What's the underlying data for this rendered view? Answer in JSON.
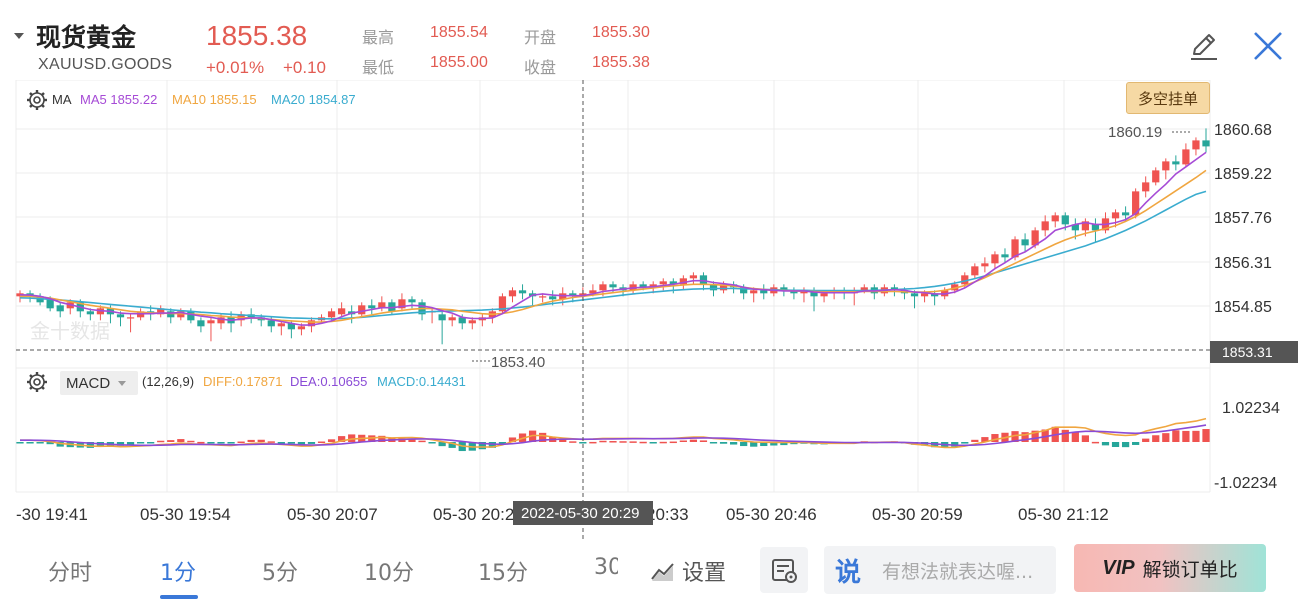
{
  "header": {
    "title": "现货黄金",
    "symbol": "XAUUSD.GOODS",
    "price": "1855.38",
    "change_pct": "+0.01%",
    "change_abs": "+0.10",
    "stats": {
      "high_label": "最高",
      "high_value": "1855.54",
      "low_label": "最低",
      "low_value": "1855.00",
      "open_label": "开盘",
      "open_value": "1855.30",
      "close_label": "收盘",
      "close_value": "1855.38"
    }
  },
  "main_chart": {
    "indicator": "MA",
    "ma5": "MA5 1855.22",
    "ma10": "MA10 1855.15",
    "ma20": "MA20 1854.87",
    "y_ticks": [
      "1860.68",
      "1859.22",
      "1857.76",
      "1856.31",
      "1854.85"
    ],
    "max_label": "1860.19",
    "min_label": "1853.40",
    "crosshair_price": "1853.31",
    "watermark": "金十数据",
    "button_label": "多空挂单"
  },
  "macd_chart": {
    "indicator": "MACD",
    "params": "(12,26,9)",
    "diff": "DIFF:0.17871",
    "dea": "DEA:0.10655",
    "macd": "MACD:0.14431",
    "y_top": "1.02234",
    "y_bottom": "-1.02234"
  },
  "x_axis": {
    "labels": [
      "-30 19:41",
      "05-30 19:54",
      "05-30 20:07",
      "05-30 20:2",
      "20:33",
      "05-30 20:46",
      "05-30 20:59",
      "05-30 21:12"
    ],
    "crosshair_time": "2022-05-30 20:29"
  },
  "colors": {
    "up": "#ef5350",
    "down": "#26a69a",
    "ma5": "#a64bd6",
    "ma10": "#f0a640",
    "ma20": "#3aaccf",
    "accent": "#3a78d8"
  },
  "bottom_bar": {
    "periods": [
      "分时",
      "1分",
      "5分",
      "10分",
      "15分",
      "30"
    ],
    "active_period": "1分",
    "settings_label": "设置",
    "comment_placeholder": "有想法就表达喔...",
    "vip_mark": "VIP",
    "vip_label": "解锁订单比"
  },
  "chart_data": {
    "type": "candlestick",
    "price_range": [
      1853.31,
      1860.68
    ],
    "candles": [
      [
        1855.1,
        1855.2,
        1855.3,
        1854.9
      ],
      [
        1855.2,
        1855.1,
        1855.3,
        1854.9
      ],
      [
        1855.1,
        1854.9,
        1855.2,
        1854.8
      ],
      [
        1855.0,
        1854.7,
        1855.1,
        1854.6
      ],
      [
        1854.8,
        1854.6,
        1854.9,
        1854.4
      ],
      [
        1854.7,
        1854.9,
        1855.0,
        1854.5
      ],
      [
        1854.9,
        1854.6,
        1855.0,
        1854.4
      ],
      [
        1854.6,
        1854.5,
        1854.7,
        1854.3
      ],
      [
        1854.5,
        1854.7,
        1854.8,
        1854.3
      ],
      [
        1854.7,
        1854.5,
        1854.8,
        1854.2
      ],
      [
        1854.5,
        1854.4,
        1854.6,
        1854.1
      ],
      [
        1854.4,
        1854.4,
        1854.5,
        1853.9
      ],
      [
        1854.4,
        1854.6,
        1854.7,
        1854.3
      ],
      [
        1854.6,
        1854.5,
        1854.8,
        1854.3
      ],
      [
        1854.5,
        1854.7,
        1854.8,
        1854.4
      ],
      [
        1854.6,
        1854.4,
        1854.7,
        1854.2
      ],
      [
        1854.4,
        1854.6,
        1854.7,
        1854.3
      ],
      [
        1854.6,
        1854.3,
        1854.7,
        1854.2
      ],
      [
        1854.3,
        1854.1,
        1854.4,
        1853.9
      ],
      [
        1854.2,
        1854.3,
        1854.4,
        1853.6
      ],
      [
        1854.2,
        1854.4,
        1854.5,
        1854.0
      ],
      [
        1854.4,
        1854.2,
        1854.6,
        1853.9
      ],
      [
        1854.3,
        1854.5,
        1854.6,
        1854.1
      ],
      [
        1854.5,
        1854.4,
        1854.7,
        1854.2
      ],
      [
        1854.4,
        1854.3,
        1854.5,
        1854.1
      ],
      [
        1854.3,
        1854.1,
        1854.4,
        1853.9
      ],
      [
        1854.1,
        1854.2,
        1854.3,
        1853.8
      ],
      [
        1854.2,
        1854.0,
        1854.3,
        1853.7
      ],
      [
        1854.0,
        1854.1,
        1854.2,
        1853.8
      ],
      [
        1854.1,
        1854.3,
        1854.4,
        1853.9
      ],
      [
        1854.3,
        1854.4,
        1854.5,
        1854.2
      ],
      [
        1854.4,
        1854.6,
        1854.7,
        1854.3
      ],
      [
        1854.5,
        1854.7,
        1854.9,
        1854.4
      ],
      [
        1854.6,
        1854.5,
        1854.8,
        1854.2
      ],
      [
        1854.5,
        1854.8,
        1854.9,
        1854.4
      ],
      [
        1854.8,
        1854.7,
        1855.0,
        1854.5
      ],
      [
        1854.7,
        1854.9,
        1855.1,
        1854.6
      ],
      [
        1854.9,
        1854.6,
        1855.0,
        1854.5
      ],
      [
        1854.7,
        1855.0,
        1855.2,
        1854.6
      ],
      [
        1855.0,
        1854.9,
        1855.1,
        1854.7
      ],
      [
        1854.9,
        1854.5,
        1855.0,
        1854.3
      ],
      [
        1854.6,
        1854.6,
        1854.7,
        1854.2
      ],
      [
        1854.5,
        1854.3,
        1854.6,
        1853.5
      ],
      [
        1854.3,
        1854.4,
        1854.5,
        1854.1
      ],
      [
        1854.4,
        1854.2,
        1854.5,
        1854.0
      ],
      [
        1854.2,
        1854.3,
        1854.4,
        1854.0
      ],
      [
        1854.3,
        1854.4,
        1854.5,
        1854.1
      ],
      [
        1854.4,
        1854.6,
        1854.7,
        1854.2
      ],
      [
        1854.6,
        1855.1,
        1855.2,
        1854.5
      ],
      [
        1855.1,
        1855.3,
        1855.4,
        1854.9
      ],
      [
        1855.3,
        1855.2,
        1855.5,
        1855.0
      ],
      [
        1855.2,
        1855.1,
        1855.3,
        1854.8
      ],
      [
        1855.1,
        1855.1,
        1855.2,
        1854.9
      ],
      [
        1855.1,
        1855.0,
        1855.3,
        1854.8
      ],
      [
        1855.0,
        1855.2,
        1855.4,
        1854.8
      ],
      [
        1855.2,
        1855.1,
        1855.3,
        1854.9
      ],
      [
        1855.1,
        1855.2,
        1855.4,
        1855.0
      ],
      [
        1855.2,
        1855.3,
        1855.5,
        1855.1
      ],
      [
        1855.3,
        1855.5,
        1855.6,
        1855.1
      ],
      [
        1855.5,
        1855.4,
        1855.6,
        1855.2
      ],
      [
        1855.4,
        1855.3,
        1855.5,
        1855.1
      ],
      [
        1855.3,
        1855.5,
        1855.6,
        1855.2
      ],
      [
        1855.5,
        1855.4,
        1855.6,
        1855.3
      ],
      [
        1855.4,
        1855.5,
        1855.6,
        1855.2
      ],
      [
        1855.5,
        1855.6,
        1855.7,
        1855.3
      ],
      [
        1855.6,
        1855.5,
        1855.7,
        1855.2
      ],
      [
        1855.5,
        1855.7,
        1855.8,
        1855.3
      ],
      [
        1855.7,
        1855.8,
        1855.9,
        1855.5
      ],
      [
        1855.8,
        1855.5,
        1855.9,
        1855.3
      ],
      [
        1855.5,
        1855.3,
        1855.6,
        1855.1
      ],
      [
        1855.3,
        1855.5,
        1855.6,
        1855.2
      ],
      [
        1855.5,
        1855.4,
        1855.6,
        1855.2
      ],
      [
        1855.4,
        1855.2,
        1855.5,
        1855.0
      ],
      [
        1855.2,
        1855.3,
        1855.4,
        1854.9
      ],
      [
        1855.3,
        1855.2,
        1855.5,
        1855.0
      ],
      [
        1855.2,
        1855.4,
        1855.5,
        1855.1
      ],
      [
        1855.4,
        1855.3,
        1855.5,
        1855.1
      ],
      [
        1855.3,
        1855.2,
        1855.4,
        1855.0
      ],
      [
        1855.2,
        1855.3,
        1855.4,
        1854.9
      ],
      [
        1855.3,
        1855.1,
        1855.4,
        1854.6
      ],
      [
        1855.1,
        1855.2,
        1855.3,
        1854.9
      ],
      [
        1855.2,
        1855.3,
        1855.4,
        1855.0
      ],
      [
        1855.3,
        1855.2,
        1855.4,
        1855.0
      ],
      [
        1855.2,
        1855.3,
        1855.4,
        1854.8
      ],
      [
        1855.3,
        1855.4,
        1855.5,
        1855.2
      ],
      [
        1855.4,
        1855.2,
        1855.5,
        1855.0
      ],
      [
        1855.2,
        1855.4,
        1855.5,
        1855.1
      ],
      [
        1855.4,
        1855.3,
        1855.5,
        1855.1
      ],
      [
        1855.3,
        1855.2,
        1855.4,
        1855.0
      ],
      [
        1855.2,
        1855.1,
        1855.3,
        1854.7
      ],
      [
        1855.1,
        1855.2,
        1855.3,
        1854.9
      ],
      [
        1855.2,
        1855.1,
        1855.3,
        1854.8
      ],
      [
        1855.1,
        1855.3,
        1855.4,
        1855.0
      ],
      [
        1855.3,
        1855.5,
        1855.6,
        1855.2
      ],
      [
        1855.5,
        1855.8,
        1855.9,
        1855.4
      ],
      [
        1855.8,
        1856.1,
        1856.2,
        1855.7
      ],
      [
        1856.1,
        1856.2,
        1856.4,
        1855.9
      ],
      [
        1856.2,
        1856.5,
        1856.6,
        1856.0
      ],
      [
        1856.5,
        1856.4,
        1856.7,
        1856.2
      ],
      [
        1856.4,
        1857.0,
        1857.1,
        1856.3
      ],
      [
        1857.0,
        1856.8,
        1857.2,
        1856.6
      ],
      [
        1856.8,
        1857.3,
        1857.4,
        1856.7
      ],
      [
        1857.3,
        1857.6,
        1857.8,
        1857.1
      ],
      [
        1857.6,
        1857.8,
        1857.9,
        1857.4
      ],
      [
        1857.8,
        1857.5,
        1857.9,
        1857.3
      ],
      [
        1857.5,
        1857.3,
        1857.7,
        1857.0
      ],
      [
        1857.3,
        1857.6,
        1857.7,
        1857.1
      ],
      [
        1857.5,
        1857.3,
        1857.7,
        1856.9
      ],
      [
        1857.3,
        1857.7,
        1857.9,
        1857.2
      ],
      [
        1857.7,
        1857.9,
        1858.0,
        1857.4
      ],
      [
        1857.9,
        1857.8,
        1858.1,
        1857.6
      ],
      [
        1857.8,
        1858.6,
        1858.7,
        1857.7
      ],
      [
        1858.6,
        1858.9,
        1859.1,
        1858.4
      ],
      [
        1858.9,
        1859.3,
        1859.4,
        1858.8
      ],
      [
        1859.3,
        1859.6,
        1859.7,
        1859.0
      ],
      [
        1859.6,
        1859.5,
        1859.8,
        1859.3
      ],
      [
        1859.5,
        1860.0,
        1860.2,
        1859.4
      ],
      [
        1860.0,
        1860.3,
        1860.4,
        1859.8
      ],
      [
        1860.3,
        1860.1,
        1860.7,
        1859.9
      ]
    ],
    "ma5": [
      1855.15,
      1855.14,
      1855.1,
      1855.02,
      1854.9,
      1854.82,
      1854.74,
      1854.66,
      1854.62,
      1854.6,
      1854.54,
      1854.52,
      1854.52,
      1854.52,
      1854.54,
      1854.54,
      1854.56,
      1854.5,
      1854.44,
      1854.4,
      1854.34,
      1854.3,
      1854.34,
      1854.38,
      1854.38,
      1854.32,
      1854.26,
      1854.2,
      1854.14,
      1854.14,
      1854.2,
      1854.28,
      1854.42,
      1854.54,
      1854.6,
      1854.66,
      1854.72,
      1854.72,
      1854.76,
      1854.8,
      1854.78,
      1854.72,
      1854.62,
      1854.54,
      1854.4,
      1854.36,
      1854.36,
      1854.38,
      1854.52,
      1854.74,
      1854.94,
      1855.14,
      1855.18,
      1855.14,
      1855.12,
      1855.12,
      1855.12,
      1855.18,
      1855.26,
      1855.3,
      1855.34,
      1855.38,
      1855.4,
      1855.42,
      1855.46,
      1855.5,
      1855.56,
      1855.62,
      1855.62,
      1855.56,
      1855.52,
      1855.48,
      1855.4,
      1855.34,
      1855.32,
      1855.3,
      1855.28,
      1855.28,
      1855.28,
      1855.24,
      1855.22,
      1855.22,
      1855.22,
      1855.22,
      1855.28,
      1855.28,
      1855.3,
      1855.32,
      1855.3,
      1855.24,
      1855.22,
      1855.18,
      1855.18,
      1855.24,
      1855.38,
      1855.58,
      1855.78,
      1856.02,
      1856.22,
      1856.44,
      1856.58,
      1856.8,
      1857.02,
      1857.3,
      1857.4,
      1857.5,
      1857.56,
      1857.5,
      1857.5,
      1857.56,
      1857.66,
      1857.86,
      1858.22,
      1858.54,
      1858.84,
      1859.18,
      1859.42,
      1859.66,
      1859.9
    ],
    "ma10": [
      1855.1,
      1855.1,
      1855.08,
      1855.04,
      1854.98,
      1854.92,
      1854.86,
      1854.8,
      1854.75,
      1854.7,
      1854.65,
      1854.6,
      1854.57,
      1854.55,
      1854.54,
      1854.53,
      1854.52,
      1854.51,
      1854.49,
      1854.46,
      1854.44,
      1854.41,
      1854.39,
      1854.38,
      1854.36,
      1854.33,
      1854.3,
      1854.28,
      1854.26,
      1854.24,
      1854.24,
      1854.26,
      1854.3,
      1854.36,
      1854.42,
      1854.48,
      1854.54,
      1854.59,
      1854.63,
      1854.67,
      1854.69,
      1854.69,
      1854.67,
      1854.65,
      1854.6,
      1854.56,
      1854.52,
      1854.5,
      1854.53,
      1854.58,
      1854.66,
      1854.76,
      1854.86,
      1854.94,
      1855.0,
      1855.06,
      1855.1,
      1855.14,
      1855.18,
      1855.22,
      1855.26,
      1855.3,
      1855.34,
      1855.38,
      1855.42,
      1855.45,
      1855.48,
      1855.5,
      1855.5,
      1855.49,
      1855.47,
      1855.44,
      1855.4,
      1855.36,
      1855.33,
      1855.3,
      1855.29,
      1855.28,
      1855.27,
      1855.26,
      1855.25,
      1855.25,
      1855.25,
      1855.25,
      1855.26,
      1855.26,
      1855.26,
      1855.26,
      1855.25,
      1855.24,
      1855.24,
      1855.26,
      1855.3,
      1855.37,
      1855.46,
      1855.58,
      1855.72,
      1855.88,
      1856.04,
      1856.2,
      1856.36,
      1856.52,
      1856.68,
      1856.84,
      1856.98,
      1857.1,
      1857.2,
      1857.28,
      1857.36,
      1857.46,
      1857.6,
      1857.76,
      1857.96,
      1858.18,
      1858.4,
      1858.62,
      1858.84,
      1859.06,
      1859.3
    ],
    "ma20": [
      1855.05,
      1855.04,
      1855.02,
      1855.0,
      1854.98,
      1854.95,
      1854.92,
      1854.89,
      1854.86,
      1854.83,
      1854.8,
      1854.77,
      1854.74,
      1854.71,
      1854.68,
      1854.65,
      1854.62,
      1854.6,
      1854.57,
      1854.55,
      1854.52,
      1854.5,
      1854.48,
      1854.46,
      1854.44,
      1854.42,
      1854.4,
      1854.38,
      1854.37,
      1854.36,
      1854.35,
      1854.35,
      1854.36,
      1854.38,
      1854.4,
      1854.43,
      1854.46,
      1854.49,
      1854.52,
      1854.55,
      1854.57,
      1854.59,
      1854.6,
      1854.61,
      1854.62,
      1854.63,
      1854.64,
      1854.66,
      1854.68,
      1854.71,
      1854.74,
      1854.78,
      1854.82,
      1854.86,
      1854.9,
      1854.94,
      1854.98,
      1855.02,
      1855.06,
      1855.1,
      1855.14,
      1855.18,
      1855.21,
      1855.24,
      1855.27,
      1855.3,
      1855.32,
      1855.34,
      1855.35,
      1855.36,
      1855.36,
      1855.36,
      1855.35,
      1855.34,
      1855.33,
      1855.32,
      1855.31,
      1855.3,
      1855.3,
      1855.29,
      1855.29,
      1855.29,
      1855.29,
      1855.29,
      1855.29,
      1855.3,
      1855.31,
      1855.32,
      1855.34,
      1855.36,
      1855.39,
      1855.43,
      1855.48,
      1855.54,
      1855.61,
      1855.69,
      1855.78,
      1855.88,
      1855.98,
      1856.08,
      1856.18,
      1856.28,
      1856.38,
      1856.48,
      1856.58,
      1856.68,
      1856.78,
      1856.9,
      1857.02,
      1857.16,
      1857.3,
      1857.46,
      1857.62,
      1857.8,
      1857.98,
      1858.16,
      1858.34,
      1858.5,
      1858.6
    ]
  }
}
